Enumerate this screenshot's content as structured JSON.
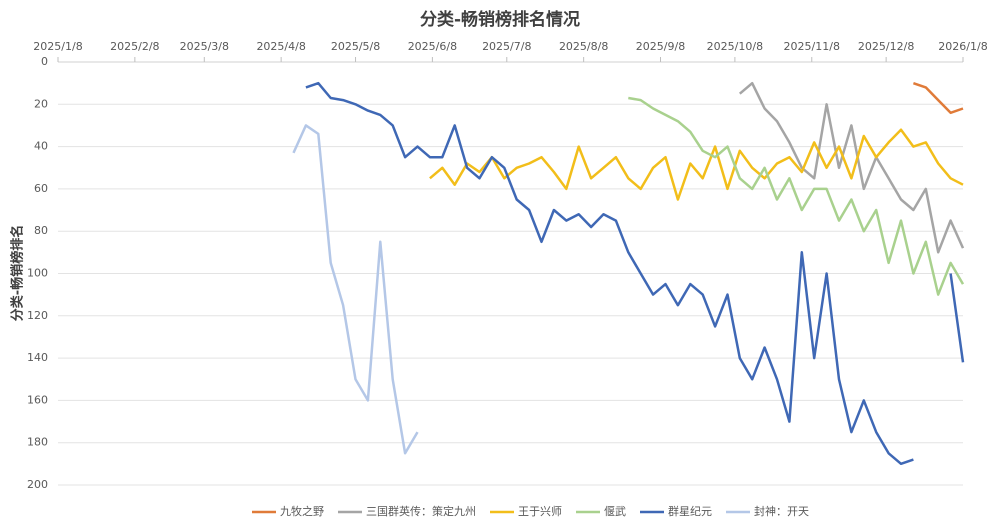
{
  "chart_data": {
    "type": "line",
    "title": "分类-畅销榜排名情况",
    "y_label": "分类-畅销榜排名",
    "x": [
      "2025-04-13",
      "2025-04-18",
      "2025-04-23",
      "2025-04-28",
      "2025-05-03",
      "2025-05-08",
      "2025-05-13",
      "2025-05-18",
      "2025-05-23",
      "2025-05-28",
      "2025-06-02",
      "2025-06-07",
      "2025-06-12",
      "2025-06-17",
      "2025-06-22",
      "2025-06-27",
      "2025-07-02",
      "2025-07-07",
      "2025-07-12",
      "2025-07-17",
      "2025-07-22",
      "2025-07-27",
      "2025-08-01",
      "2025-08-06",
      "2025-08-11",
      "2025-08-16",
      "2025-08-21",
      "2025-08-26",
      "2025-08-31",
      "2025-09-05",
      "2025-09-10",
      "2025-09-15",
      "2025-09-20",
      "2025-09-25",
      "2025-09-30",
      "2025-10-05",
      "2025-10-10",
      "2025-10-15",
      "2025-10-20",
      "2025-10-25",
      "2025-10-30",
      "2025-11-04",
      "2025-11-09",
      "2025-11-14",
      "2025-11-19",
      "2025-11-24",
      "2025-11-29",
      "2025-12-04",
      "2025-12-09",
      "2025-12-14",
      "2025-12-19",
      "2025-12-24",
      "2025-12-29",
      "2026-01-03",
      "2026-01-08"
    ],
    "xlim": [
      "2025-01-08",
      "2026-01-08"
    ],
    "xticks": [
      {
        "value": "2025-01-08",
        "label": "2025/1/8"
      },
      {
        "value": "2025-02-08",
        "label": "2025/2/8"
      },
      {
        "value": "2025-03-08",
        "label": "2025/3/8"
      },
      {
        "value": "2025-04-08",
        "label": "2025/4/8"
      },
      {
        "value": "2025-05-08",
        "label": "2025/5/8"
      },
      {
        "value": "2025-06-08",
        "label": "2025/6/8"
      },
      {
        "value": "2025-07-08",
        "label": "2025/7/8"
      },
      {
        "value": "2025-08-08",
        "label": "2025/8/8"
      },
      {
        "value": "2025-09-08",
        "label": "2025/9/8"
      },
      {
        "value": "2025-10-08",
        "label": "2025/10/8"
      },
      {
        "value": "2025-11-08",
        "label": "2025/11/8"
      },
      {
        "value": "2025-12-08",
        "label": "2025/12/8"
      },
      {
        "value": "2026-01-08",
        "label": "2026/1/8"
      }
    ],
    "ylim": [
      0,
      200
    ],
    "yticks": [
      0,
      20,
      40,
      60,
      80,
      100,
      120,
      140,
      160,
      180,
      200
    ],
    "y_inverted": true,
    "grid": true,
    "series": [
      {
        "name": "九牧之野",
        "color": "#e07b39",
        "values": [
          null,
          null,
          null,
          null,
          null,
          null,
          null,
          null,
          null,
          null,
          null,
          null,
          null,
          null,
          null,
          null,
          null,
          null,
          null,
          null,
          null,
          null,
          null,
          null,
          null,
          null,
          null,
          null,
          null,
          null,
          null,
          null,
          null,
          null,
          null,
          null,
          null,
          null,
          null,
          null,
          null,
          null,
          null,
          null,
          null,
          null,
          null,
          null,
          null,
          null,
          10,
          12,
          18,
          24,
          22
        ]
      },
      {
        "name": "三国群英传：策定九州",
        "color": "#a5a5a5",
        "values": [
          null,
          null,
          null,
          null,
          null,
          null,
          null,
          null,
          null,
          null,
          null,
          null,
          null,
          null,
          null,
          null,
          null,
          null,
          null,
          null,
          null,
          null,
          null,
          null,
          null,
          null,
          null,
          null,
          null,
          null,
          null,
          null,
          null,
          null,
          null,
          null,
          15,
          10,
          22,
          28,
          38,
          50,
          55,
          20,
          50,
          30,
          60,
          45,
          55,
          65,
          70,
          60,
          90,
          75,
          88
        ]
      },
      {
        "name": "王于兴师",
        "color": "#f2be1a",
        "values": [
          null,
          null,
          null,
          null,
          null,
          null,
          null,
          null,
          null,
          null,
          null,
          55,
          50,
          58,
          48,
          52,
          45,
          55,
          50,
          48,
          45,
          52,
          60,
          40,
          55,
          50,
          45,
          55,
          60,
          50,
          45,
          65,
          48,
          55,
          40,
          60,
          42,
          50,
          55,
          48,
          45,
          52,
          38,
          50,
          40,
          55,
          35,
          45,
          38,
          32,
          40,
          38,
          48,
          55,
          58
        ]
      },
      {
        "name": "偃武",
        "color": "#a9d18e",
        "values": [
          null,
          null,
          null,
          null,
          null,
          null,
          null,
          null,
          null,
          null,
          null,
          null,
          null,
          null,
          null,
          null,
          null,
          null,
          null,
          null,
          null,
          null,
          null,
          null,
          null,
          null,
          null,
          17,
          18,
          22,
          25,
          28,
          33,
          42,
          45,
          40,
          55,
          60,
          50,
          65,
          55,
          70,
          60,
          60,
          75,
          65,
          80,
          70,
          95,
          75,
          100,
          85,
          110,
          95,
          105
        ]
      },
      {
        "name": "群星纪元",
        "color": "#3f68b5",
        "values": [
          null,
          12,
          10,
          17,
          18,
          20,
          23,
          25,
          30,
          45,
          40,
          45,
          45,
          30,
          50,
          55,
          45,
          50,
          65,
          70,
          85,
          70,
          75,
          72,
          78,
          72,
          75,
          90,
          100,
          110,
          105,
          115,
          105,
          110,
          125,
          110,
          140,
          150,
          135,
          150,
          170,
          90,
          140,
          100,
          150,
          175,
          160,
          175,
          185,
          190,
          188,
          null,
          null,
          100,
          142
        ]
      },
      {
        "name": "封神：开天",
        "color": "#b4c7e7",
        "values": [
          43,
          30,
          34,
          95,
          115,
          150,
          160,
          85,
          150,
          185,
          175,
          null,
          null,
          null,
          null,
          null,
          null,
          null,
          null,
          null,
          null,
          null,
          null,
          null,
          null,
          null,
          null,
          null,
          null,
          null,
          null,
          null,
          null,
          null,
          null,
          null,
          null,
          null,
          null,
          null,
          null,
          null,
          null,
          null,
          null,
          null,
          null,
          null,
          null,
          null,
          null,
          null,
          null,
          null,
          null
        ]
      }
    ]
  }
}
